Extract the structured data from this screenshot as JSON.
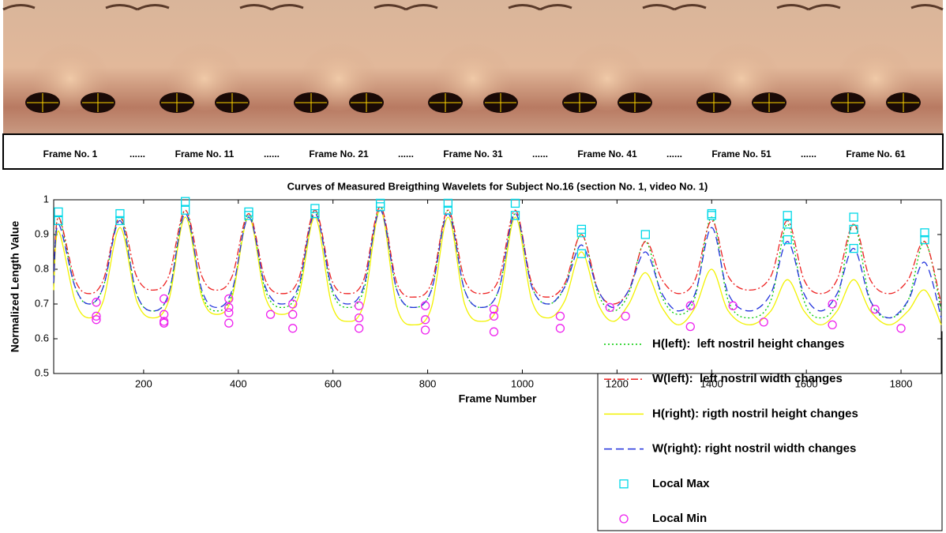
{
  "strip": {
    "labels": [
      "Frame No. 1",
      "Frame No. 11",
      "Frame No. 21",
      "Frame No. 31",
      "Frame No. 41",
      "Frame No. 51",
      "Frame No. 61"
    ],
    "separator": "......"
  },
  "chart_data": {
    "type": "line",
    "title": "Curves of Measured Breigthing Wavelets for Subject No.16 (section No. 1, video No. 1)",
    "x_label": "Frame Number",
    "y_label": "Normalized Length Value",
    "xlim": [
      10,
      1885
    ],
    "xticks": [
      200,
      400,
      600,
      800,
      1000,
      1200,
      1400,
      1600,
      1800
    ],
    "ylim": [
      0.5,
      1
    ],
    "yticks": [
      0.5,
      0.6,
      0.7,
      0.8,
      0.9,
      1
    ],
    "legend": "bottom-right",
    "x": [
      10,
      20,
      55,
      85,
      115,
      150,
      185,
      219,
      253,
      288,
      323,
      355,
      387,
      422,
      457,
      492,
      527,
      562,
      597,
      631,
      665,
      700,
      735,
      771,
      808,
      843,
      878,
      914,
      950,
      985,
      1020,
      1055,
      1090,
      1125,
      1160,
      1192,
      1225,
      1260,
      1295,
      1330,
      1365,
      1400,
      1435,
      1480,
      1525,
      1560,
      1595,
      1630,
      1665,
      1700,
      1735,
      1775,
      1815,
      1850,
      1885
    ],
    "series": [
      {
        "name": "H(left):  left nostril height changes",
        "color": "#00cc00",
        "style": "dotted",
        "values": [
          0.76,
          0.95,
          0.75,
          0.7,
          0.75,
          0.95,
          0.73,
          0.68,
          0.73,
          0.97,
          0.73,
          0.68,
          0.73,
          0.96,
          0.74,
          0.69,
          0.74,
          0.97,
          0.74,
          0.69,
          0.74,
          0.98,
          0.74,
          0.69,
          0.74,
          0.97,
          0.74,
          0.69,
          0.74,
          0.96,
          0.75,
          0.7,
          0.75,
          0.9,
          0.73,
          0.68,
          0.73,
          0.88,
          0.72,
          0.67,
          0.72,
          0.95,
          0.71,
          0.66,
          0.71,
          0.93,
          0.71,
          0.66,
          0.71,
          0.93,
          0.71,
          0.66,
          0.71,
          0.88,
          0.68
        ]
      },
      {
        "name": "W(left):  left nostril width changes",
        "color": "#ee2222",
        "style": "dashdot",
        "values": [
          0.76,
          0.95,
          0.77,
          0.73,
          0.77,
          0.95,
          0.78,
          0.74,
          0.78,
          0.97,
          0.78,
          0.74,
          0.78,
          0.96,
          0.77,
          0.73,
          0.77,
          0.97,
          0.77,
          0.73,
          0.77,
          0.98,
          0.76,
          0.72,
          0.76,
          0.97,
          0.77,
          0.73,
          0.77,
          0.97,
          0.76,
          0.72,
          0.76,
          0.9,
          0.74,
          0.7,
          0.74,
          0.88,
          0.77,
          0.73,
          0.77,
          0.94,
          0.78,
          0.74,
          0.78,
          0.94,
          0.77,
          0.73,
          0.77,
          0.93,
          0.77,
          0.73,
          0.77,
          0.88,
          0.7
        ]
      },
      {
        "name": "H(right): rigth nostril height changes",
        "color": "#f2f200",
        "style": "solid",
        "values": [
          0.74,
          0.91,
          0.71,
          0.66,
          0.71,
          0.92,
          0.71,
          0.66,
          0.71,
          0.95,
          0.72,
          0.67,
          0.72,
          0.95,
          0.72,
          0.67,
          0.72,
          0.95,
          0.7,
          0.65,
          0.7,
          0.97,
          0.69,
          0.64,
          0.69,
          0.95,
          0.7,
          0.65,
          0.7,
          0.95,
          0.71,
          0.66,
          0.71,
          0.85,
          0.7,
          0.65,
          0.7,
          0.79,
          0.69,
          0.64,
          0.69,
          0.8,
          0.68,
          0.64,
          0.68,
          0.77,
          0.68,
          0.64,
          0.68,
          0.77,
          0.68,
          0.64,
          0.68,
          0.74,
          0.64
        ]
      },
      {
        "name": "W(right): right nostril width changes",
        "color": "#2233dd",
        "style": "dashed",
        "values": [
          0.76,
          0.93,
          0.75,
          0.7,
          0.75,
          0.94,
          0.73,
          0.68,
          0.73,
          0.96,
          0.74,
          0.69,
          0.74,
          0.95,
          0.75,
          0.7,
          0.75,
          0.96,
          0.75,
          0.7,
          0.75,
          0.97,
          0.74,
          0.69,
          0.74,
          0.96,
          0.74,
          0.69,
          0.74,
          0.96,
          0.75,
          0.7,
          0.75,
          0.87,
          0.74,
          0.69,
          0.74,
          0.85,
          0.73,
          0.68,
          0.73,
          0.92,
          0.73,
          0.68,
          0.73,
          0.88,
          0.73,
          0.68,
          0.73,
          0.86,
          0.71,
          0.66,
          0.71,
          0.82,
          0.66
        ]
      }
    ],
    "markers": [
      {
        "name": "Local Max",
        "color": "#00d8e8",
        "marker": "square",
        "x": [
          20,
          20,
          150,
          150,
          288,
          288,
          422,
          422,
          562,
          562,
          700,
          700,
          843,
          843,
          985,
          985,
          1125,
          1125,
          1125,
          1260,
          1400,
          1400,
          1560,
          1560,
          1560,
          1700,
          1700,
          1700,
          1850,
          1850
        ],
        "values": [
          0.965,
          0.94,
          0.96,
          0.94,
          0.995,
          0.97,
          0.965,
          0.955,
          0.975,
          0.96,
          0.99,
          0.98,
          0.99,
          0.97,
          0.99,
          0.955,
          0.915,
          0.905,
          0.845,
          0.9,
          0.96,
          0.955,
          0.955,
          0.93,
          0.885,
          0.95,
          0.915,
          0.86,
          0.905,
          0.885
        ]
      },
      {
        "name": "Local Min",
        "color": "#ee22ee",
        "marker": "circle",
        "x": [
          100,
          100,
          100,
          243,
          243,
          243,
          243,
          380,
          380,
          380,
          380,
          468,
          515,
          515,
          515,
          655,
          655,
          655,
          795,
          795,
          795,
          940,
          940,
          940,
          1080,
          1080,
          1185,
          1218,
          1355,
          1355,
          1445,
          1510,
          1655,
          1655,
          1745,
          1800
        ],
        "values": [
          0.705,
          0.665,
          0.655,
          0.715,
          0.67,
          0.65,
          0.645,
          0.715,
          0.69,
          0.675,
          0.645,
          0.67,
          0.7,
          0.67,
          0.63,
          0.695,
          0.66,
          0.63,
          0.695,
          0.655,
          0.625,
          0.685,
          0.665,
          0.62,
          0.665,
          0.63,
          0.69,
          0.665,
          0.695,
          0.635,
          0.695,
          0.648,
          0.7,
          0.64,
          0.685,
          0.63
        ]
      }
    ]
  }
}
